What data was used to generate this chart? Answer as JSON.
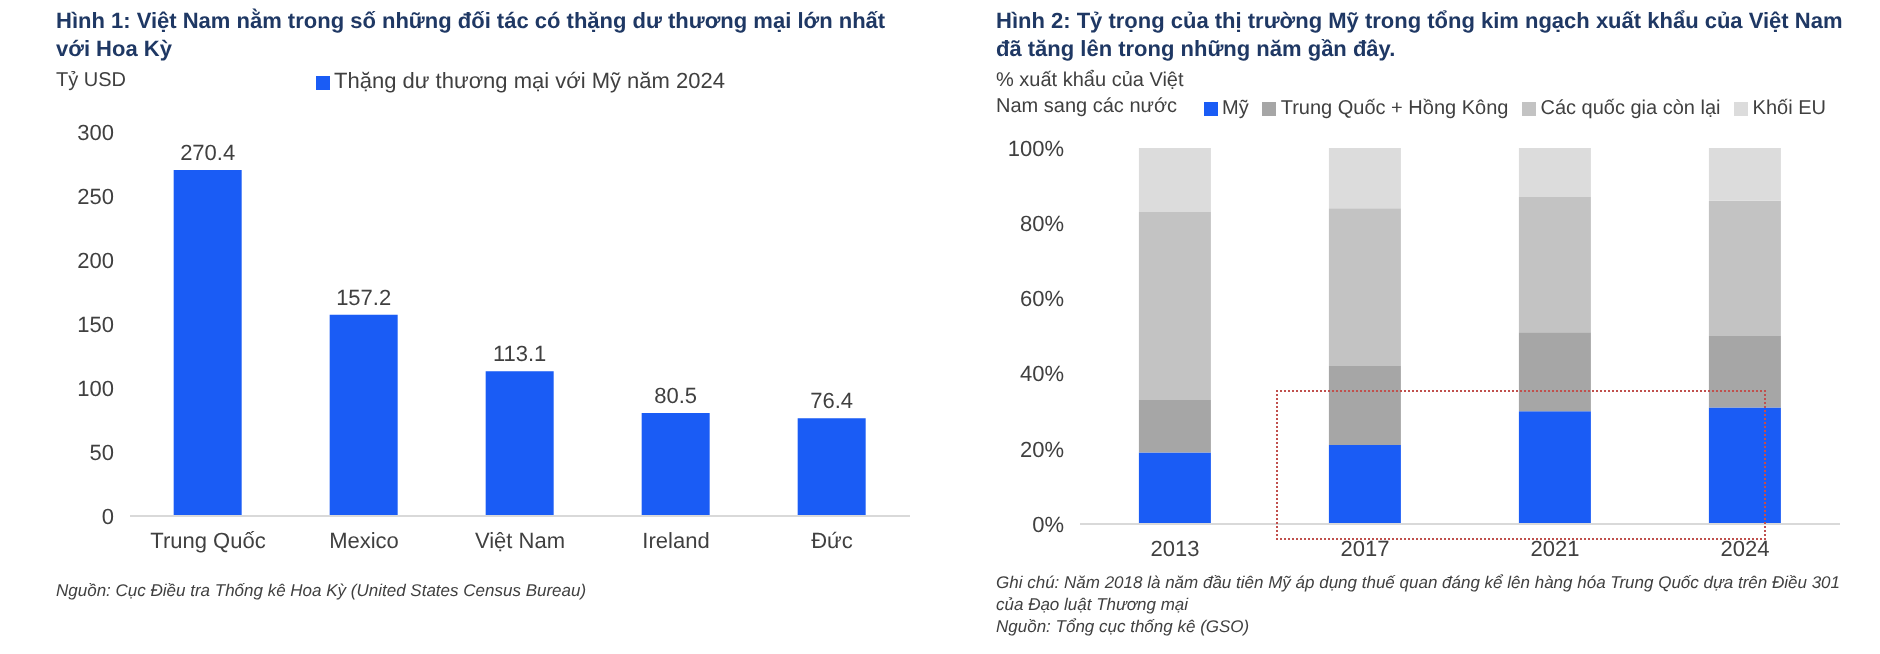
{
  "chart_data": [
    {
      "type": "bar",
      "title": "Hình 1: Việt Nam nằm trong số những đối tác có thặng dư thương mại lớn nhất với Hoa Kỳ",
      "ylabel": "Tỷ USD",
      "categories": [
        "Trung Quốc",
        "Mexico",
        "Việt Nam",
        "Ireland",
        "Đức"
      ],
      "series": [
        {
          "name": "Thặng dư thương mại với Mỹ năm 2024",
          "color": "#1a5cf5",
          "values": [
            270.4,
            157.2,
            113.1,
            80.5,
            76.4
          ]
        }
      ],
      "ylim": [
        0,
        300
      ],
      "yticks": [
        0,
        50,
        100,
        150,
        200,
        250,
        300
      ],
      "data_labels": true,
      "legend": "top",
      "grid": false,
      "annotations": [
        "Nguồn: Cục Điều tra Thống kê Hoa Kỳ (United States Census Bureau)"
      ]
    },
    {
      "type": "bar",
      "title": "Hình 2: Tỷ trọng của thị trường Mỹ trong tổng kim ngạch xuất khẩu của Việt Nam đã tăng lên trong những năm gần đây.",
      "ylabel": "% xuất khẩu của Việt Nam sang các nước",
      "categories": [
        "2013",
        "2017",
        "2021",
        "2024"
      ],
      "stacked": true,
      "series": [
        {
          "name": "Mỹ",
          "color": "#1a5cf5",
          "values": [
            19,
            21,
            30,
            31
          ]
        },
        {
          "name": "Trung Quốc + Hồng Kông",
          "color": "#a6a6a6",
          "values": [
            14,
            21,
            21,
            19
          ]
        },
        {
          "name": "Các quốc gia còn lại",
          "color": "#c3c3c3",
          "values": [
            50,
            42,
            36,
            36
          ]
        },
        {
          "name": "Khối EU",
          "color": "#dcdcdc",
          "values": [
            17,
            16,
            13,
            14
          ]
        }
      ],
      "ylim": [
        0,
        100
      ],
      "yticks": [
        {
          "value": 0,
          "label": "0%"
        },
        {
          "value": 20,
          "label": "20%"
        },
        {
          "value": 40,
          "label": "40%"
        },
        {
          "value": 60,
          "label": "60%"
        },
        {
          "value": 80,
          "label": "80%"
        },
        {
          "value": 100,
          "label": "100%"
        }
      ],
      "legend": "top",
      "grid": false,
      "annotations": [
        "Ghi chú: Năm 2018 là năm đầu tiên Mỹ áp dụng thuế quan đáng kể lên hàng hóa Trung Quốc dựa trên Điều 301 của Đạo luật Thương mại",
        "Nguồn: Tổng cục thống kê (GSO)"
      ]
    }
  ]
}
